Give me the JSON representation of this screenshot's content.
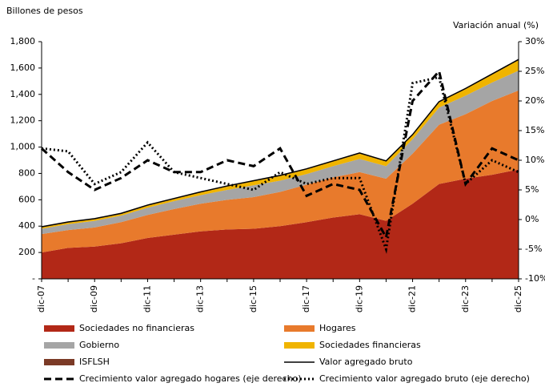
{
  "chart_data": {
    "type": "stacked-area",
    "y_label": "Billones de pesos",
    "y2_label": "Variación anual (%)",
    "categories": [
      "dic-07",
      null,
      "dic-09",
      null,
      "dic-11",
      null,
      "dic-13",
      null,
      "dic-15",
      null,
      "dic-17",
      null,
      "dic-19",
      null,
      "dic-21",
      null,
      "dic-23",
      null,
      "dic-25"
    ],
    "ylim": [
      0,
      1800
    ],
    "yticks": [
      {
        "value": 0,
        "label": "-"
      },
      200,
      400,
      600,
      800,
      {
        "value": 1000,
        "label": "1,000"
      },
      {
        "value": 1200,
        "label": "1,200"
      },
      {
        "value": 1400,
        "label": "1,400"
      },
      {
        "value": 1600,
        "label": "1,600"
      },
      {
        "value": 1800,
        "label": "1,800"
      }
    ],
    "y2lim": [
      -10,
      30
    ],
    "y2ticks": [
      {
        "value": -10,
        "label": "-10%"
      },
      {
        "value": -5,
        "label": "-5%"
      },
      {
        "value": 0,
        "label": "0%"
      },
      {
        "value": 5,
        "label": "5%"
      },
      {
        "value": 10,
        "label": "10%"
      },
      {
        "value": 15,
        "label": "15%"
      },
      {
        "value": 20,
        "label": "20%"
      },
      {
        "value": 25,
        "label": "25%"
      },
      {
        "value": 30,
        "label": "30%"
      }
    ],
    "series": [
      {
        "name": "Sociedades no financieras",
        "color": "#b22817",
        "type": "area",
        "values": [
          200,
          235,
          245,
          270,
          310,
          335,
          360,
          375,
          380,
          400,
          430,
          465,
          490,
          440,
          570,
          720,
          760,
          790,
          830
        ]
      },
      {
        "name": "Hogares",
        "color": "#e87a2c",
        "type": "area",
        "values": [
          140,
          135,
          145,
          160,
          175,
          195,
          210,
          225,
          240,
          260,
          285,
          305,
          320,
          320,
          380,
          450,
          490,
          560,
          600
        ]
      },
      {
        "name": "Gobierno",
        "color": "#a5a5a5",
        "type": "area",
        "values": [
          40,
          45,
          50,
          50,
          55,
          60,
          65,
          75,
          90,
          85,
          80,
          85,
          100,
          95,
          110,
          130,
          140,
          140,
          150
        ]
      },
      {
        "name": "Sociedades financieras",
        "color": "#f0b400",
        "type": "area",
        "values": [
          10,
          12,
          12,
          12,
          15,
          15,
          20,
          25,
          30,
          35,
          35,
          35,
          40,
          35,
          30,
          40,
          50,
          60,
          80
        ]
      },
      {
        "name": "ISFLSH",
        "color": "#7b3a26",
        "type": "area",
        "values": [
          5,
          5,
          5,
          5,
          5,
          5,
          5,
          5,
          5,
          5,
          5,
          5,
          5,
          5,
          5,
          5,
          5,
          5,
          5
        ]
      },
      {
        "name": "Valor agregado bruto",
        "color": "#000000",
        "type": "line",
        "dash": "solid",
        "values": [
          395,
          432,
          457,
          497,
          560,
          610,
          660,
          705,
          745,
          785,
          835,
          895,
          955,
          895,
          1095,
          1345,
          1445,
          1555,
          1665
        ]
      },
      {
        "name": "Crecimiento valor agregado hogares (eje derecho)",
        "color": "#000000",
        "type": "line",
        "dash": "dashed",
        "axis": "y2",
        "values": [
          12,
          8,
          5,
          7,
          10,
          8,
          8,
          10,
          9,
          12,
          4,
          6,
          5,
          -3,
          20,
          25,
          6,
          12,
          10
        ]
      },
      {
        "name": "Crecimiento valor agregado bruto (eje derecho)",
        "color": "#000000",
        "type": "line",
        "dash": "dotted",
        "axis": "y2",
        "values": [
          12,
          11.5,
          6,
          8,
          13,
          8,
          7,
          6,
          5,
          8,
          6,
          7,
          7,
          -5,
          23,
          24,
          6,
          10,
          8
        ]
      }
    ]
  }
}
